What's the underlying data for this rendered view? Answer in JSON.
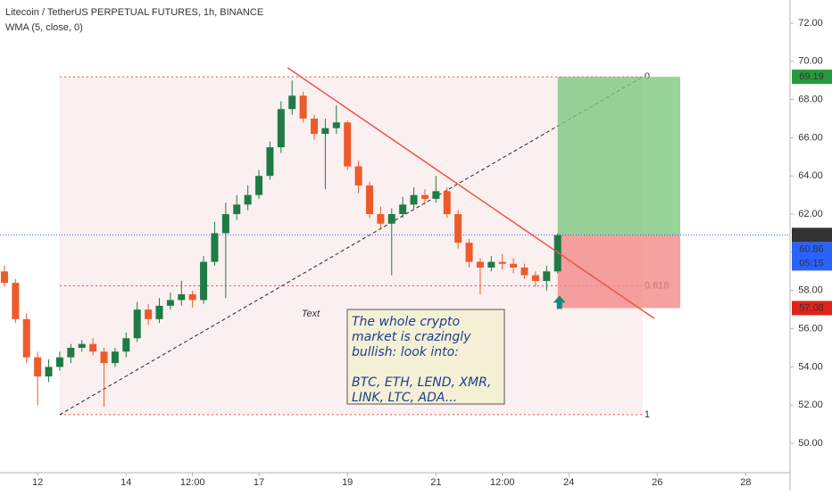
{
  "chart_data": {
    "type": "candlestick",
    "title": "Litecoin / TetherUS PERPETUAL FUTURES, 1h, BINANCE",
    "indicator": "WMA (5, close, 0)",
    "x": [
      11.25,
      11.5,
      11.75,
      12,
      12.25,
      12.5,
      12.75,
      13,
      13.25,
      13.5,
      13.75,
      14,
      14.25,
      14.5,
      14.75,
      15,
      15.25,
      15.5,
      15.75,
      16,
      16.25,
      16.5,
      16.75,
      17,
      17.25,
      17.5,
      17.75,
      18,
      18.25,
      18.5,
      18.75,
      19,
      19.25,
      19.5,
      19.75,
      20,
      20.25,
      20.5,
      20.75,
      21,
      21.25,
      21.5,
      21.75,
      22,
      22.25,
      22.5,
      22.75,
      23,
      23.25,
      23.5,
      23.75
    ],
    "open": [
      59.0,
      58.4,
      56.5,
      54.5,
      53.5,
      54.0,
      54.5,
      55.0,
      55.2,
      54.8,
      54.2,
      54.8,
      55.5,
      57.0,
      56.5,
      57.2,
      57.5,
      57.8,
      57.5,
      59.5,
      61.0,
      62.0,
      62.5,
      63.0,
      64.0,
      65.5,
      67.5,
      68.2,
      67.0,
      66.2,
      66.5,
      66.8,
      64.5,
      63.5,
      62.0,
      61.5,
      62.0,
      62.5,
      63.0,
      62.8,
      63.2,
      62.0,
      60.5,
      59.5,
      59.2,
      59.5,
      59.4,
      59.2,
      58.8,
      58.5,
      59.0
    ],
    "high": [
      59.3,
      58.6,
      56.8,
      54.8,
      54.4,
      54.8,
      55.2,
      55.4,
      55.5,
      55.0,
      55.0,
      55.8,
      57.4,
      57.3,
      57.6,
      57.9,
      58.5,
      58.0,
      59.8,
      61.6,
      62.6,
      63.0,
      63.5,
      64.3,
      65.8,
      67.9,
      69.0,
      68.4,
      67.2,
      67.0,
      67.7,
      66.9,
      64.8,
      63.7,
      62.4,
      62.3,
      62.9,
      63.4,
      63.3,
      64.0,
      63.4,
      62.2,
      60.7,
      59.7,
      59.8,
      59.9,
      59.7,
      59.4,
      59.0,
      59.3,
      61.0
    ],
    "low": [
      58.2,
      56.3,
      54.2,
      52.0,
      53.2,
      53.8,
      54.2,
      54.8,
      54.6,
      51.9,
      54.0,
      54.5,
      55.3,
      56.2,
      56.3,
      57.0,
      57.2,
      57.1,
      57.3,
      59.3,
      57.6,
      61.7,
      62.2,
      62.8,
      63.8,
      65.2,
      67.2,
      66.8,
      65.9,
      63.3,
      66.2,
      64.3,
      63.1,
      61.8,
      61.2,
      58.8,
      61.8,
      62.3,
      62.5,
      62.6,
      61.8,
      60.2,
      59.2,
      57.8,
      59.0,
      59.1,
      58.9,
      58.6,
      58.2,
      58.0,
      58.9
    ],
    "close": [
      58.4,
      56.5,
      54.5,
      53.5,
      54.0,
      54.5,
      55.0,
      55.2,
      54.8,
      54.2,
      54.8,
      55.5,
      57.0,
      56.5,
      57.2,
      57.5,
      57.8,
      57.5,
      59.5,
      61.0,
      62.0,
      62.5,
      63.0,
      64.0,
      65.5,
      67.5,
      68.2,
      67.0,
      66.2,
      66.5,
      66.8,
      64.5,
      63.5,
      62.0,
      61.5,
      62.0,
      62.5,
      63.0,
      62.8,
      63.2,
      62.0,
      60.5,
      59.5,
      59.2,
      59.5,
      59.4,
      59.2,
      58.8,
      58.5,
      59.0,
      60.9
    ],
    "up_color": "#1e7b45",
    "down_color": "#ec5b2c",
    "xlim": [
      11.15,
      29.0
    ],
    "ylim": [
      48.46,
      73.21
    ],
    "xticks": [
      {
        "value": 12,
        "label": "12"
      },
      {
        "value": 14,
        "label": "14"
      },
      {
        "value": 15.5,
        "label": "12:00"
      },
      {
        "value": 17,
        "label": "17"
      },
      {
        "value": 19,
        "label": "19"
      },
      {
        "value": 21,
        "label": "21"
      },
      {
        "value": 22.5,
        "label": "12:00"
      },
      {
        "value": 24,
        "label": "24"
      },
      {
        "value": 26,
        "label": "26"
      },
      {
        "value": 28,
        "label": "28"
      }
    ],
    "yticks": [
      {
        "value": 50,
        "label": "50.00"
      },
      {
        "value": 52,
        "label": "52.00"
      },
      {
        "value": 54,
        "label": "54.00"
      },
      {
        "value": 56,
        "label": "56.00"
      },
      {
        "value": 58,
        "label": "58.00"
      },
      {
        "value": 60,
        "label": "60.00"
      },
      {
        "value": 62,
        "label": "62.00"
      },
      {
        "value": 64,
        "label": "64.00"
      },
      {
        "value": 66,
        "label": "66.00"
      },
      {
        "value": 68,
        "label": "68.00"
      },
      {
        "value": 70,
        "label": "70.00"
      },
      {
        "value": 72,
        "label": "72.00"
      }
    ],
    "last_price": 60.91,
    "price_labels": [
      {
        "value": 60.86
      },
      {
        "text": "05:15"
      }
    ],
    "position": {
      "start": 23.75,
      "end": 26.52,
      "entry": 60.91,
      "target": 69.19,
      "stop": 57.08
    },
    "fib": {
      "start": 12.5,
      "end": 25.67,
      "levels": [
        {
          "level": 0,
          "price": 69.19
        },
        {
          "level": 0.618,
          "price": 58.25
        },
        {
          "level": 1,
          "price": 51.5
        }
      ]
    },
    "trendline": {
      "x": [
        17.65,
        25.93
      ],
      "y": [
        69.66,
        56.54
      ],
      "color": "#f0534a"
    },
    "fib_diagonal": {
      "x": [
        12.5,
        25.67
      ],
      "y": [
        51.5,
        69.19
      ]
    },
    "text_label": "Text",
    "note": [
      [
        "The whole crypto",
        "market is crazingly",
        "bullish: look into:"
      ],
      [
        "BTC, ETH, LEND, XMR,",
        "LINK, LTC, ADA..."
      ]
    ]
  }
}
